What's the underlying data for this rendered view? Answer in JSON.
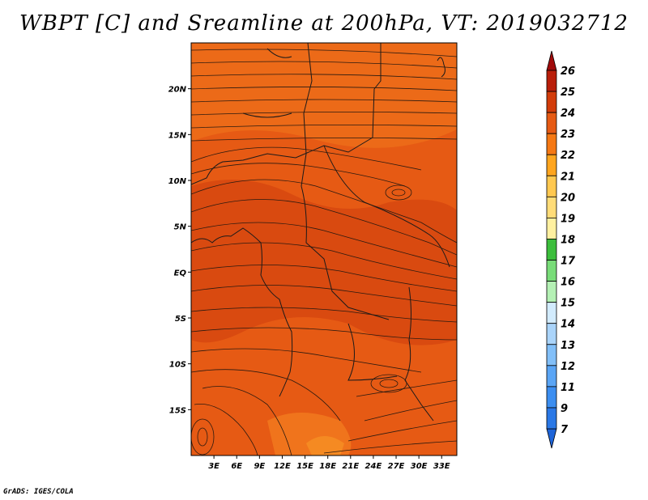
{
  "title": "WBPT [C] and Sreamline at 200hPa, VT: 2019032712",
  "credit": "GrADS: IGES/COLA",
  "chart_data": {
    "type": "heatmap",
    "title": "WBPT [C] and Sreamline at 200hPa, VT: 2019032712",
    "variable": "Wet-bulb potential temperature",
    "units": "C",
    "level_hPa": 200,
    "valid_time": "2019032712",
    "x_range": [
      0,
      35
    ],
    "y_range": [
      -20,
      25
    ],
    "x_ticks": [
      {
        "value": 3,
        "label": "3E"
      },
      {
        "value": 6,
        "label": "6E"
      },
      {
        "value": 9,
        "label": "9E"
      },
      {
        "value": 12,
        "label": "12E"
      },
      {
        "value": 15,
        "label": "15E"
      },
      {
        "value": 18,
        "label": "18E"
      },
      {
        "value": 21,
        "label": "21E"
      },
      {
        "value": 24,
        "label": "24E"
      },
      {
        "value": 27,
        "label": "27E"
      },
      {
        "value": 30,
        "label": "30E"
      },
      {
        "value": 33,
        "label": "33E"
      }
    ],
    "y_ticks": [
      {
        "value": 20,
        "label": "20N"
      },
      {
        "value": 15,
        "label": "15N"
      },
      {
        "value": 10,
        "label": "10N"
      },
      {
        "value": 5,
        "label": "5N"
      },
      {
        "value": 0,
        "label": "EQ"
      },
      {
        "value": -5,
        "label": "5S"
      },
      {
        "value": -10,
        "label": "10S"
      },
      {
        "value": -15,
        "label": "15S"
      }
    ],
    "colorbar": {
      "levels": [
        7,
        9,
        11,
        12,
        13,
        14,
        15,
        16,
        17,
        18,
        19,
        20,
        21,
        22,
        23,
        24,
        25,
        26
      ],
      "colors": [
        "#1e64d8",
        "#2a78e6",
        "#3c8ef0",
        "#5aa5f5",
        "#82bff8",
        "#aad4fa",
        "#d2ebfd",
        "#b4f0b4",
        "#78dc78",
        "#3cbe3c",
        "#fff0a0",
        "#ffdc78",
        "#ffc850",
        "#ffa51e",
        "#f57814",
        "#e65a14",
        "#d23c0a",
        "#b91e0a",
        "#a00a0a"
      ]
    },
    "field_regions": [
      {
        "region": "north (17N-25N)",
        "wbpt_band": "23-24"
      },
      {
        "region": "central (10S-12N)",
        "wbpt_band": "24-25"
      },
      {
        "region": "south-west corner (20S, 15E-21E)",
        "wbpt_band": "22-23"
      }
    ],
    "streamline_features": [
      {
        "type": "anticyclonic eddy",
        "lon": 27,
        "lat": 9
      },
      {
        "type": "eddy",
        "lon": 24,
        "lat": -11.5
      },
      {
        "type": "eddy",
        "lon": 1,
        "lat": -17
      }
    ],
    "flow": "predominantly westerly to south-westerly across the domain"
  }
}
